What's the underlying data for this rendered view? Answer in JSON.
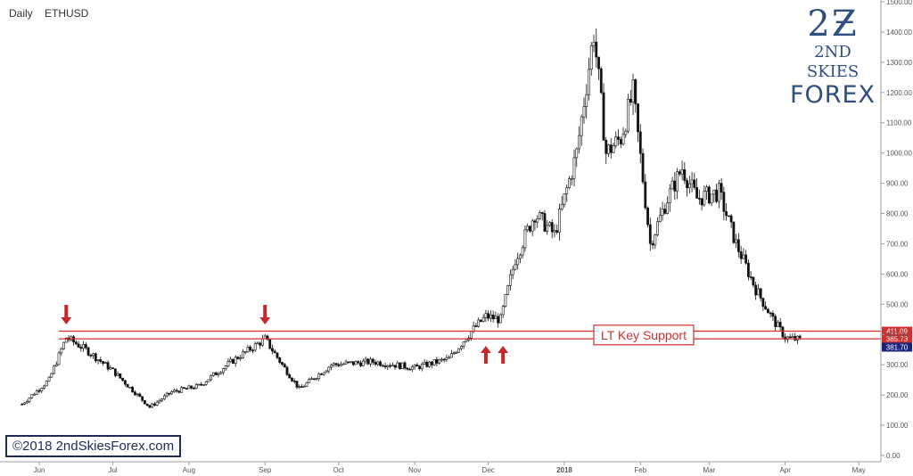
{
  "header": {
    "timeframe": "Daily",
    "symbol": "ETHUSD"
  },
  "logo": {
    "mark": "2Ƶ",
    "line1": "2ND SKIES",
    "line2": "FOREX"
  },
  "copyright": "©2018 2ndSkiesForex.com",
  "colors": {
    "level": "#d32f2f",
    "candle": "#111111",
    "annotation": "#c62828",
    "price_tag": "#1a237e",
    "axis_text": "#555555"
  },
  "chart_data": {
    "type": "candlestick",
    "ylim": [
      0,
      1500
    ],
    "y_ticks": [
      "0.00",
      "100.00",
      "200.00",
      "300.00",
      "400.00",
      "500.00",
      "600.00",
      "700.00",
      "800.00",
      "900.00",
      "1000.00",
      "1100.00",
      "1200.00",
      "1300.00",
      "1400.00",
      "1500.00"
    ],
    "x_labels": [
      "Jun",
      "Jul",
      "Aug",
      "Sep",
      "Oct",
      "Nov",
      "Dec",
      "2018",
      "Feb",
      "Mar",
      "Apr",
      "May"
    ],
    "close_path": [
      {
        "date": "2017-05-25",
        "close": 170
      },
      {
        "date": "2017-06-05",
        "close": 250
      },
      {
        "date": "2017-06-12",
        "close": 390
      },
      {
        "date": "2017-06-20",
        "close": 350
      },
      {
        "date": "2017-07-01",
        "close": 280
      },
      {
        "date": "2017-07-16",
        "close": 160
      },
      {
        "date": "2017-07-25",
        "close": 210
      },
      {
        "date": "2017-08-05",
        "close": 230
      },
      {
        "date": "2017-08-20",
        "close": 320
      },
      {
        "date": "2017-09-01",
        "close": 385
      },
      {
        "date": "2017-09-08",
        "close": 300
      },
      {
        "date": "2017-09-15",
        "close": 220
      },
      {
        "date": "2017-09-28",
        "close": 300
      },
      {
        "date": "2017-10-15",
        "close": 310
      },
      {
        "date": "2017-11-01",
        "close": 290
      },
      {
        "date": "2017-11-15",
        "close": 320
      },
      {
        "date": "2017-11-24",
        "close": 410
      },
      {
        "date": "2017-11-30",
        "close": 460
      },
      {
        "date": "2017-12-06",
        "close": 450
      },
      {
        "date": "2017-12-12",
        "close": 650
      },
      {
        "date": "2017-12-20",
        "close": 800
      },
      {
        "date": "2017-12-28",
        "close": 730
      },
      {
        "date": "2018-01-06",
        "close": 1000
      },
      {
        "date": "2018-01-13",
        "close": 1400
      },
      {
        "date": "2018-01-18",
        "close": 1000
      },
      {
        "date": "2018-01-24",
        "close": 1050
      },
      {
        "date": "2018-01-29",
        "close": 1200
      },
      {
        "date": "2018-02-05",
        "close": 700
      },
      {
        "date": "2018-02-12",
        "close": 850
      },
      {
        "date": "2018-02-18",
        "close": 950
      },
      {
        "date": "2018-02-24",
        "close": 850
      },
      {
        "date": "2018-03-05",
        "close": 870
      },
      {
        "date": "2018-03-12",
        "close": 700
      },
      {
        "date": "2018-03-20",
        "close": 550
      },
      {
        "date": "2018-03-27",
        "close": 450
      },
      {
        "date": "2018-04-01",
        "close": 390
      },
      {
        "date": "2018-04-07",
        "close": 382
      }
    ],
    "levels": [
      {
        "value": 411.09,
        "label": "411.09"
      },
      {
        "value": 385.73,
        "label": "385.73"
      }
    ],
    "last_price": {
      "value": 381.7,
      "label": "381.70"
    },
    "annotations": {
      "zone_label": "LT Key Support"
    },
    "arrows": [
      {
        "date": "2017-06-12",
        "direction": "down"
      },
      {
        "date": "2017-09-01",
        "direction": "down"
      },
      {
        "date": "2017-11-30",
        "direction": "up"
      },
      {
        "date": "2017-12-07",
        "direction": "up"
      }
    ]
  }
}
